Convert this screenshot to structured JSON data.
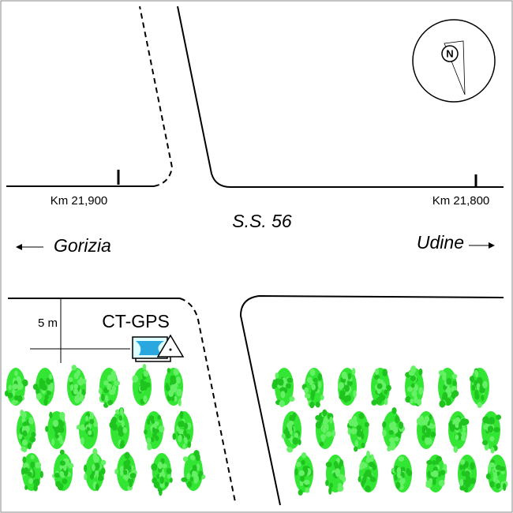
{
  "labels": {
    "km_left": "Km 21,900",
    "km_right": "Km 21,800",
    "road": "S.S. 56",
    "west": "Gorizia",
    "east": "Udine",
    "scale": "5 m",
    "device": "CT-GPS",
    "north": "N"
  }
}
